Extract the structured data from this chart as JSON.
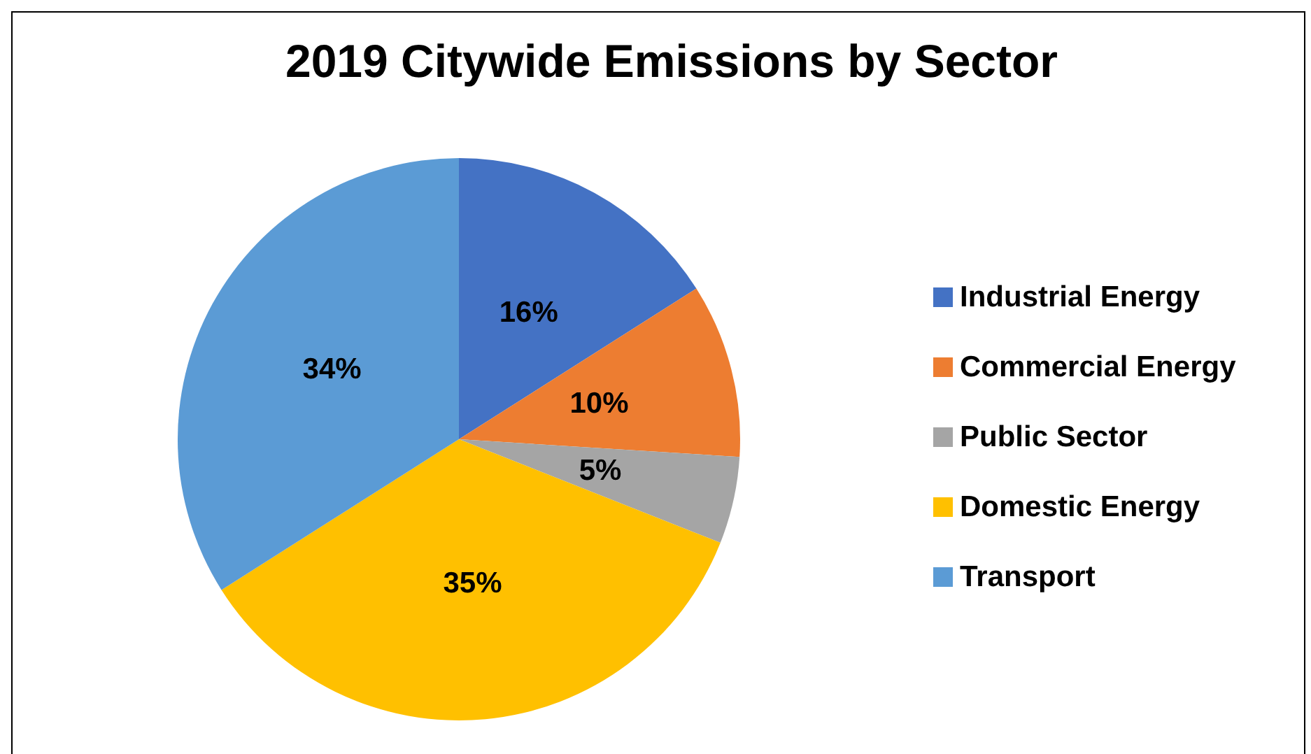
{
  "chart_data": {
    "type": "pie",
    "title": "2019 Citywide Emissions by Sector",
    "categories": [
      "Industrial Energy",
      "Commercial Energy",
      "Public Sector",
      "Domestic Energy",
      "Transport"
    ],
    "values": [
      16,
      10,
      5,
      35,
      34
    ],
    "colors": [
      "#4472c4",
      "#ed7d31",
      "#a5a5a5",
      "#ffc000",
      "#5b9bd5"
    ],
    "value_labels": [
      "16%",
      "10%",
      "5%",
      "35%",
      "34%"
    ],
    "legend": "right"
  }
}
